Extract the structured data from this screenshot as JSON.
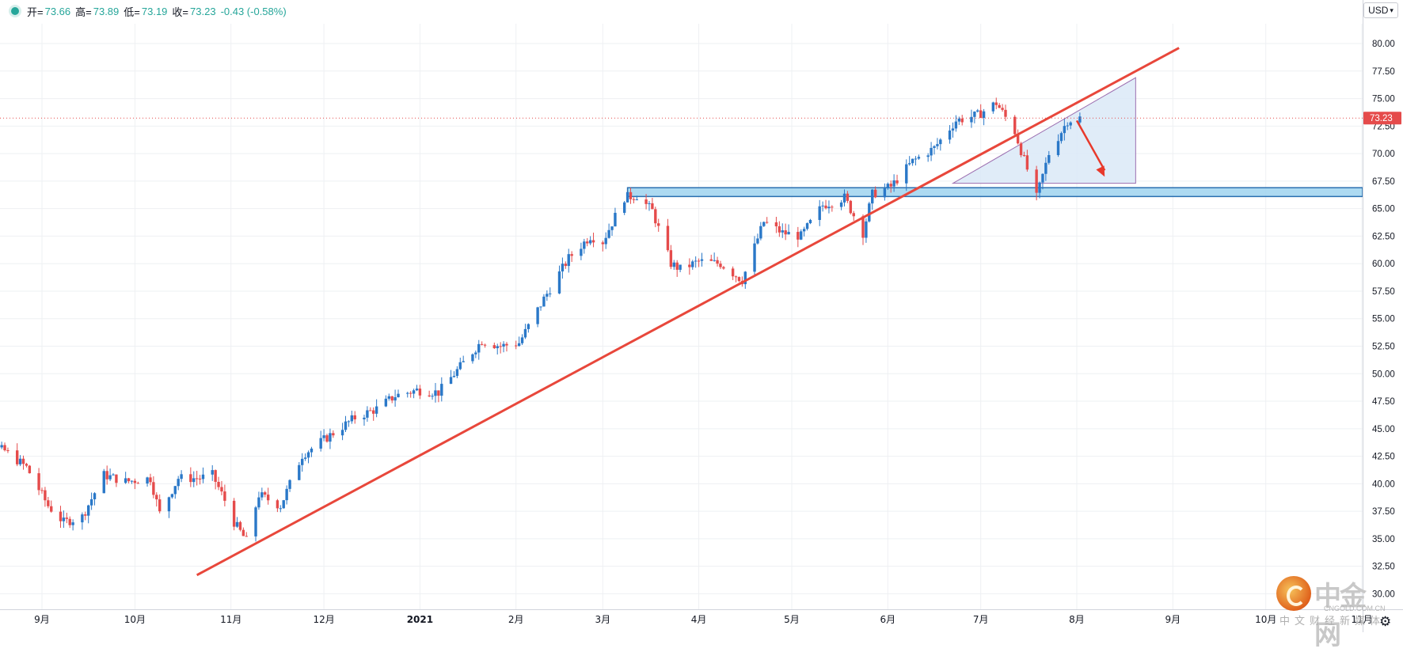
{
  "header": {
    "open_label": "开=",
    "open_value": "73.66",
    "high_label": "高=",
    "high_value": "73.89",
    "low_label": "低=",
    "low_value": "73.19",
    "close_label": "收=",
    "close_value": "73.23",
    "change": "-0.43 (-0.58%)"
  },
  "currency_button": "USD",
  "settings_icon": "gear-icon",
  "watermark": {
    "name": "中金网",
    "domain": "CNGOLD.COM.CN",
    "tagline": "中文财经新媒体"
  },
  "colors": {
    "up": "#2a78c8",
    "down": "#e54b4b",
    "trendline": "#e8473b",
    "zone_fill": "#9fd3ee",
    "zone_stroke": "#2a6fb0",
    "triangle_fill": "#dbe9f7",
    "price_tag": "#e54b4b",
    "grid": "#eef0f3"
  },
  "chart_data": {
    "type": "candlestick",
    "y_ticks": [
      "80.00",
      "77.50",
      "75.00",
      "72.50",
      "70.00",
      "67.50",
      "65.00",
      "62.50",
      "60.00",
      "57.50",
      "55.00",
      "52.50",
      "50.00",
      "47.50",
      "45.00",
      "42.50",
      "40.00",
      "37.50",
      "35.00",
      "32.50",
      "30.00"
    ],
    "ylim": [
      29.6,
      81.8
    ],
    "x_ticks": [
      "9月",
      "10月",
      "11月",
      "12月",
      "2021",
      "2月",
      "3月",
      "4月",
      "5月",
      "6月",
      "7月",
      "8月",
      "9月",
      "10月",
      "11月"
    ],
    "last_price": "73.23",
    "last_price_value": 73.23,
    "support_zone": {
      "low": 66.1,
      "high": 66.9
    },
    "trendline": {
      "from_date": "2020-10-21",
      "from_price": 31.7,
      "to_date": "2021-09-03",
      "to_price": 79.6
    },
    "triangle": {
      "apex_date": "2021-06-22",
      "apex_price": 67.3,
      "corner_date": "2021-08-20",
      "top_price": 76.9,
      "bottom_price": 67.3
    },
    "forecast_arrow": {
      "from_date": "2021-08-01",
      "from_price": 73.0,
      "to_date": "2021-08-10",
      "to_price": 67.9
    },
    "price_path": [
      [
        "2020-08-04",
        42.8
      ],
      [
        "2020-08-12",
        43.6
      ],
      [
        "2020-08-20",
        43.0
      ],
      [
        "2020-08-27",
        41.5
      ],
      [
        "2020-09-03",
        38.0
      ],
      [
        "2020-09-08",
        36.5
      ],
      [
        "2020-09-14",
        37.0
      ],
      [
        "2020-09-21",
        40.8
      ],
      [
        "2020-09-28",
        40.2
      ],
      [
        "2020-10-06",
        40.5
      ],
      [
        "2020-10-09",
        37.3
      ],
      [
        "2020-10-15",
        40.5
      ],
      [
        "2020-10-22",
        40.5
      ],
      [
        "2020-10-26",
        40.8
      ],
      [
        "2020-10-30",
        38.5
      ],
      [
        "2020-11-02",
        36.5
      ],
      [
        "2020-11-06",
        34.8
      ],
      [
        "2020-11-10",
        39.0
      ],
      [
        "2020-11-17",
        38.0
      ],
      [
        "2020-11-24",
        42.6
      ],
      [
        "2020-12-04",
        44.6
      ],
      [
        "2020-12-11",
        46.0
      ],
      [
        "2020-12-18",
        46.8
      ],
      [
        "2020-12-24",
        48.0
      ],
      [
        "2020-12-31",
        48.5
      ],
      [
        "2021-01-07",
        48.3
      ],
      [
        "2021-01-13",
        50.3
      ],
      [
        "2021-01-21",
        53.0
      ],
      [
        "2021-01-27",
        52.5
      ],
      [
        "2021-02-02",
        52.8
      ],
      [
        "2021-02-10",
        56.8
      ],
      [
        "2021-02-18",
        60.5
      ],
      [
        "2021-02-25",
        62.5
      ],
      [
        "2021-03-01",
        62.0
      ],
      [
        "2021-03-08",
        66.0
      ],
      [
        "2021-03-12",
        66.2
      ],
      [
        "2021-03-17",
        64.8
      ],
      [
        "2021-03-23",
        60.0
      ],
      [
        "2021-03-26",
        59.5
      ],
      [
        "2021-04-01",
        60.2
      ],
      [
        "2021-04-08",
        60.0
      ],
      [
        "2021-04-15",
        58.5
      ],
      [
        "2021-04-22",
        63.8
      ],
      [
        "2021-04-28",
        62.8
      ],
      [
        "2021-05-04",
        62.5
      ],
      [
        "2021-05-11",
        65.3
      ],
      [
        "2021-05-18",
        66.0
      ],
      [
        "2021-05-24",
        62.8
      ],
      [
        "2021-05-27",
        66.3
      ],
      [
        "2021-06-02",
        67.0
      ],
      [
        "2021-06-09",
        69.3
      ],
      [
        "2021-06-16",
        70.5
      ],
      [
        "2021-06-23",
        73.0
      ],
      [
        "2021-06-30",
        73.5
      ],
      [
        "2021-07-06",
        74.6
      ],
      [
        "2021-07-12",
        72.0
      ],
      [
        "2021-07-19",
        66.0
      ],
      [
        "2021-07-23",
        70.0
      ],
      [
        "2021-07-29",
        73.0
      ],
      [
        "2021-08-02",
        73.23
      ]
    ]
  }
}
